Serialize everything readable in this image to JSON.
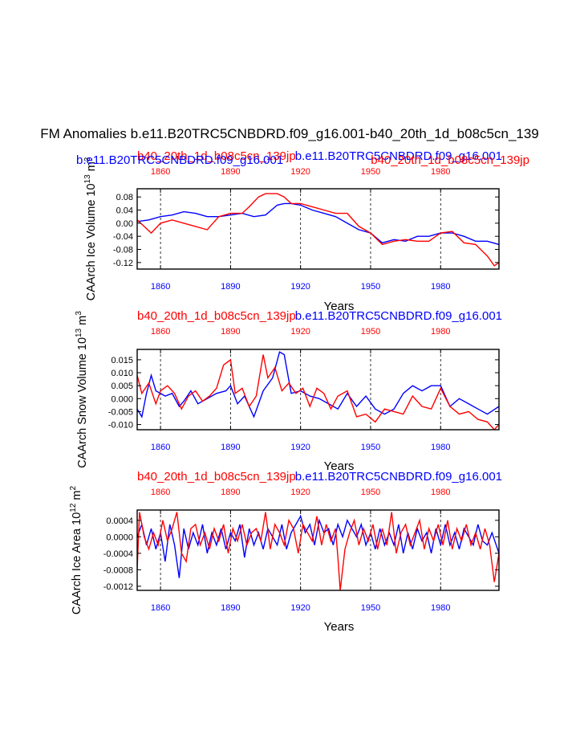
{
  "figure": {
    "title": "FM Anomalies b.e11.B20TRC5CNBDRD.f09_g16.001-b40_20th_1d_b08c5cn_139",
    "colors": {
      "blue": "#0000ff",
      "red": "#ff0000",
      "axis": "#000000"
    }
  },
  "chart_data": [
    {
      "type": "line",
      "id": "volume",
      "ylabel": "CAArch Ice Volume 10",
      "ylabel_exp": "13",
      "ylabel_unit": " m",
      "ylabel_unit_exp": "3",
      "xlabel": "Years",
      "xlim": [
        1850,
        2005
      ],
      "ylim": [
        -0.14,
        0.105
      ],
      "yticks": [
        0.08,
        0.04,
        0.0,
        -0.04,
        -0.08,
        -0.12
      ],
      "ytick_labels": [
        "0.08",
        "0.04",
        "0.00",
        "-0.04",
        "-0.08",
        "-0.12"
      ],
      "xticks": [
        1860,
        1890,
        1920,
        1950,
        1980
      ],
      "xtick_labels": [
        "1860",
        "1890",
        "1920",
        "1950",
        "1980"
      ],
      "top_labels": [
        {
          "text": "b40_20th_1d_b08c5cn_139jp",
          "color": "red",
          "row": 0,
          "anchor": "start"
        },
        {
          "text": "b.e11.B20TRC5CNBDRD.f09_g16.001",
          "color": "blue",
          "row": 0,
          "anchor": "end"
        },
        {
          "text": "b.e11.B20TRC5CNBDRD.f09_g16.001",
          "color": "blue",
          "row": 1,
          "anchor": "start"
        },
        {
          "text": "b40_20th_1d_b08c5cn_139jp",
          "color": "red",
          "row": 1,
          "anchor": "end"
        }
      ],
      "series": [
        {
          "name": "b.e11.B20TRC5CNBDRD.f09_g16.001",
          "color": "blue",
          "x": [
            1850,
            1855,
            1860,
            1865,
            1870,
            1875,
            1880,
            1885,
            1890,
            1895,
            1900,
            1905,
            1910,
            1913,
            1916,
            1920,
            1925,
            1930,
            1935,
            1940,
            1945,
            1950,
            1955,
            1960,
            1965,
            1970,
            1975,
            1980,
            1985,
            1990,
            1995,
            2000,
            2005
          ],
          "values": [
            0.005,
            0.01,
            0.02,
            0.025,
            0.035,
            0.03,
            0.02,
            0.02,
            0.025,
            0.03,
            0.02,
            0.025,
            0.055,
            0.06,
            0.06,
            0.055,
            0.04,
            0.03,
            0.02,
            0.0,
            -0.02,
            -0.03,
            -0.06,
            -0.05,
            -0.055,
            -0.04,
            -0.04,
            -0.03,
            -0.03,
            -0.04,
            -0.055,
            -0.055,
            -0.065
          ]
        },
        {
          "name": "b40_20th_1d_b08c5cn_139jp",
          "color": "red",
          "x": [
            1850,
            1853,
            1856,
            1860,
            1865,
            1870,
            1875,
            1880,
            1885,
            1890,
            1895,
            1898,
            1902,
            1905,
            1910,
            1913,
            1916,
            1920,
            1925,
            1930,
            1935,
            1940,
            1945,
            1950,
            1955,
            1960,
            1965,
            1970,
            1975,
            1980,
            1985,
            1990,
            1995,
            2000,
            2003,
            2005
          ],
          "values": [
            0.01,
            -0.01,
            -0.03,
            0.0,
            0.01,
            0.0,
            -0.01,
            -0.02,
            0.02,
            0.03,
            0.03,
            0.05,
            0.08,
            0.09,
            0.09,
            0.08,
            0.06,
            0.06,
            0.05,
            0.04,
            0.03,
            0.03,
            -0.01,
            -0.03,
            -0.065,
            -0.055,
            -0.05,
            -0.055,
            -0.055,
            -0.03,
            -0.025,
            -0.06,
            -0.065,
            -0.1,
            -0.13,
            -0.12
          ]
        }
      ]
    },
    {
      "type": "line",
      "id": "snow",
      "ylabel": "CAArch Snow Volume 10",
      "ylabel_exp": "13",
      "ylabel_unit": " m",
      "ylabel_unit_exp": "3",
      "xlabel": "Years",
      "xlim": [
        1850,
        2005
      ],
      "ylim": [
        -0.012,
        0.019
      ],
      "yticks": [
        0.015,
        0.01,
        0.005,
        0.0,
        -0.005,
        -0.01
      ],
      "ytick_labels": [
        "0.015",
        "0.010",
        "0.005",
        "0.000",
        "-0.005",
        "-0.010"
      ],
      "xticks": [
        1860,
        1890,
        1920,
        1950,
        1980
      ],
      "xtick_labels": [
        "1860",
        "1890",
        "1920",
        "1950",
        "1980"
      ],
      "top_labels": [
        {
          "text": "b40_20th_1d_b08c5cn_139jp",
          "color": "red",
          "row": 0,
          "anchor": "start"
        },
        {
          "text": "b.e11.B20TRC5CNBDRD.f09_g16.001",
          "color": "blue",
          "row": 0,
          "anchor": "end"
        }
      ],
      "series": [
        {
          "name": "b.e11.B20TRC5CNBDRD.f09_g16.001",
          "color": "blue",
          "x": [
            1850,
            1852,
            1854,
            1856,
            1858,
            1860,
            1862,
            1865,
            1868,
            1870,
            1873,
            1876,
            1880,
            1884,
            1888,
            1890,
            1893,
            1896,
            1900,
            1904,
            1908,
            1911,
            1913,
            1916,
            1920,
            1924,
            1928,
            1932,
            1936,
            1940,
            1944,
            1948,
            1952,
            1956,
            1960,
            1964,
            1968,
            1972,
            1976,
            1980,
            1984,
            1988,
            1992,
            1996,
            2000,
            2005
          ],
          "values": [
            -0.004,
            -0.007,
            0.002,
            0.009,
            0.003,
            0.002,
            0.001,
            0.002,
            -0.003,
            -0.001,
            0.003,
            -0.002,
            0.0,
            0.002,
            0.003,
            0.005,
            -0.002,
            0.001,
            -0.007,
            0.003,
            0.008,
            0.018,
            0.017,
            0.002,
            0.003,
            0.001,
            0.0,
            -0.002,
            -0.004,
            0.002,
            -0.003,
            0.001,
            -0.004,
            -0.006,
            -0.004,
            0.002,
            0.005,
            0.003,
            0.005,
            0.005,
            -0.003,
            0.0,
            -0.002,
            -0.004,
            -0.006,
            -0.003
          ]
        },
        {
          "name": "b40_20th_1d_b08c5cn_139jp",
          "color": "red",
          "x": [
            1850,
            1852,
            1855,
            1858,
            1860,
            1863,
            1866,
            1869,
            1872,
            1875,
            1878,
            1881,
            1884,
            1887,
            1890,
            1892,
            1895,
            1898,
            1901,
            1904,
            1906,
            1909,
            1912,
            1915,
            1918,
            1921,
            1924,
            1927,
            1930,
            1933,
            1936,
            1940,
            1944,
            1948,
            1952,
            1956,
            1960,
            1964,
            1968,
            1972,
            1976,
            1980,
            1984,
            1988,
            1992,
            1996,
            2000,
            2003,
            2005
          ],
          "values": [
            0.009,
            0.002,
            0.006,
            -0.002,
            0.003,
            0.005,
            0.002,
            -0.004,
            0.001,
            0.003,
            -0.001,
            0.001,
            0.004,
            0.013,
            0.015,
            0.002,
            0.004,
            -0.003,
            0.001,
            0.017,
            0.008,
            0.012,
            0.003,
            0.006,
            0.002,
            0.004,
            -0.003,
            0.004,
            0.002,
            -0.004,
            0.001,
            0.003,
            -0.007,
            -0.006,
            -0.009,
            -0.004,
            -0.005,
            -0.006,
            0.001,
            -0.003,
            -0.004,
            0.004,
            -0.003,
            -0.006,
            -0.005,
            -0.008,
            -0.009,
            -0.012,
            -0.01
          ]
        }
      ]
    },
    {
      "type": "line",
      "id": "area",
      "ylabel": "CAArch Ice Area 10",
      "ylabel_exp": "12",
      "ylabel_unit": " m",
      "ylabel_unit_exp": "2",
      "xlabel": "Years",
      "xlim": [
        1850,
        2005
      ],
      "ylim": [
        -0.0013,
        0.00065
      ],
      "yticks": [
        0.0004,
        0.0,
        -0.0004,
        -0.0008,
        -0.0012
      ],
      "ytick_labels": [
        "0.0004",
        "0.0000",
        "-0.0004",
        "-0.0008",
        "-0.0012"
      ],
      "xticks": [
        1860,
        1890,
        1920,
        1950,
        1980
      ],
      "xtick_labels": [
        "1860",
        "1890",
        "1920",
        "1950",
        "1980"
      ],
      "top_labels": [
        {
          "text": "b40_20th_1d_b08c5cn_139jp",
          "color": "red",
          "row": 0,
          "anchor": "start"
        },
        {
          "text": "b.e11.B20TRC5CNBDRD.f09_g16.001",
          "color": "blue",
          "row": 0,
          "anchor": "end"
        }
      ],
      "series": [
        {
          "name": "b.e11.B20TRC5CNBDRD.f09_g16.001",
          "color": "blue",
          "x": [
            1850,
            1852,
            1854,
            1856,
            1858,
            1860,
            1862,
            1864,
            1866,
            1868,
            1870,
            1872,
            1874,
            1876,
            1878,
            1880,
            1882,
            1884,
            1886,
            1888,
            1890,
            1892,
            1894,
            1896,
            1898,
            1900,
            1902,
            1904,
            1906,
            1908,
            1910,
            1912,
            1914,
            1916,
            1918,
            1920,
            1922,
            1924,
            1926,
            1928,
            1930,
            1932,
            1934,
            1936,
            1938,
            1940,
            1942,
            1944,
            1946,
            1948,
            1950,
            1952,
            1954,
            1956,
            1958,
            1960,
            1962,
            1964,
            1966,
            1968,
            1970,
            1972,
            1974,
            1976,
            1978,
            1980,
            1982,
            1984,
            1986,
            1988,
            1990,
            1992,
            1994,
            1996,
            1998,
            2000,
            2002,
            2005
          ],
          "values": [
            0.0,
            0.0003,
            -0.0002,
            0.0002,
            -0.0003,
            0.0001,
            -0.0006,
            0.0003,
            -0.0002,
            -0.001,
            0.0002,
            -0.0003,
            0.0001,
            -0.0002,
            0.0003,
            -0.0004,
            0.0001,
            -0.0002,
            0.0002,
            -0.0003,
            0.0001,
            -0.0001,
            0.0003,
            -0.0005,
            0.0002,
            -0.0002,
            0.0001,
            -0.0003,
            0.0002,
            0.0,
            -0.0002,
            0.0003,
            -0.0003,
            0.0001,
            0.0003,
            0.0005,
            0.0001,
            0.0003,
            -0.0002,
            0.0004,
            0.0001,
            0.0002,
            -0.0002,
            0.0003,
            0.0,
            0.0004,
            0.0002,
            0.0,
            0.0003,
            -0.0002,
            0.0001,
            -0.0003,
            0.0002,
            -0.0002,
            0.0001,
            -0.0002,
            0.0003,
            -0.0004,
            0.0001,
            -0.0003,
            0.0002,
            -0.0001,
            0.0001,
            -0.0004,
            0.0002,
            -0.0002,
            0.0003,
            -0.0002,
            0.0001,
            -0.0003,
            0.0002,
            0.0,
            -0.0002,
            0.0003,
            -0.0001,
            -0.0002,
            0.0001,
            -0.0004
          ]
        },
        {
          "name": "b40_20th_1d_b08c5cn_139jp",
          "color": "red",
          "x": [
            1850,
            1851,
            1853,
            1855,
            1857,
            1859,
            1861,
            1863,
            1865,
            1867,
            1869,
            1871,
            1873,
            1875,
            1877,
            1879,
            1881,
            1883,
            1885,
            1887,
            1889,
            1891,
            1893,
            1895,
            1897,
            1899,
            1901,
            1903,
            1905,
            1907,
            1909,
            1911,
            1913,
            1915,
            1917,
            1919,
            1921,
            1923,
            1925,
            1927,
            1929,
            1931,
            1933,
            1935,
            1936,
            1937,
            1939,
            1941,
            1943,
            1945,
            1947,
            1949,
            1951,
            1953,
            1955,
            1957,
            1959,
            1961,
            1963,
            1965,
            1967,
            1969,
            1971,
            1973,
            1975,
            1977,
            1979,
            1981,
            1983,
            1985,
            1987,
            1989,
            1991,
            1993,
            1995,
            1997,
            1999,
            2001,
            2003,
            2005
          ],
          "values": [
            -0.0008,
            0.0006,
            0.0,
            -0.0003,
            0.0001,
            -0.0002,
            0.0004,
            -0.0001,
            0.0002,
            0.0006,
            -0.0004,
            -0.0006,
            0.0002,
            0.0003,
            -0.0002,
            0.0001,
            -0.0003,
            0.0002,
            -0.0001,
            0.0003,
            -0.0004,
            0.0002,
            -0.0001,
            0.0003,
            -0.0002,
            0.0001,
            0.0002,
            -0.0001,
            0.0006,
            -0.0003,
            0.0003,
            0.0001,
            -0.0002,
            0.0004,
            0.0002,
            -0.0004,
            0.0003,
            0.0001,
            -0.0001,
            0.0005,
            -0.0002,
            0.0003,
            -0.0001,
            0.0002,
            -0.0005,
            -0.0013,
            -0.0003,
            0.0001,
            0.0004,
            -0.0002,
            0.0002,
            -0.0001,
            0.0003,
            -0.0003,
            0.0002,
            -0.0002,
            0.0006,
            -0.0004,
            0.0001,
            0.0003,
            -0.0002,
            0.0001,
            0.0004,
            -0.0003,
            0.0002,
            -0.0001,
            0.0003,
            -0.0002,
            0.0004,
            -0.0003,
            0.0002,
            -0.0001,
            0.0003,
            -0.0002,
            0.0001,
            -0.0003,
            0.0002,
            -0.0002,
            -0.0011,
            -0.0004
          ]
        }
      ]
    }
  ]
}
